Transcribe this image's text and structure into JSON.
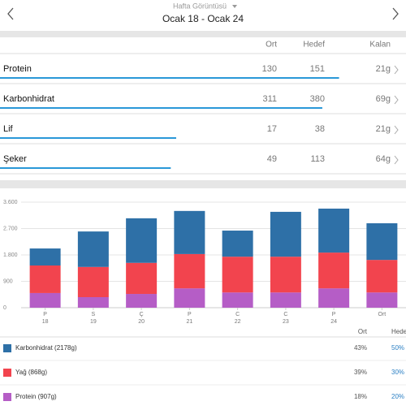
{
  "header": {
    "subtitle": "Hafta Görüntüsü",
    "title": "Ocak 18 - Ocak 24"
  },
  "columns": [
    "Ort",
    "Hedef",
    "Kalan"
  ],
  "nutrients": [
    {
      "name": "Protein",
      "ort": 130,
      "hedef": 151,
      "kalan": "21g"
    },
    {
      "name": "Karbonhidrat",
      "ort": 311,
      "hedef": 380,
      "kalan": "69g"
    },
    {
      "name": "Lif",
      "ort": 17,
      "hedef": 38,
      "kalan": "21g"
    },
    {
      "name": "Şeker",
      "ort": 49,
      "hedef": 113,
      "kalan": "64g"
    }
  ],
  "chart_data": {
    "type": "stacked_bar",
    "categories": [
      "P",
      "S",
      "Ç",
      "P",
      "C",
      "C",
      "P",
      "Ort"
    ],
    "days": [
      18,
      19,
      20,
      21,
      22,
      23,
      24,
      null
    ],
    "ylim": [
      0,
      3600
    ],
    "yticks": [
      0,
      900,
      {
        "value": 1800,
        "label": "1.800"
      },
      {
        "value": 2700,
        "label": "2.700"
      },
      {
        "value": 3600,
        "label": "3.600"
      }
    ],
    "grid": true,
    "series": [
      {
        "name": "Protein (907g)",
        "color": "#b55dc6",
        "values": [
          500,
          360,
          470,
          660,
          520,
          520,
          660,
          520
        ]
      },
      {
        "name": "Yağ (868g)",
        "color": "#f2444e",
        "values": [
          940,
          1030,
          1060,
          1170,
          1220,
          1220,
          1220,
          1110
        ]
      },
      {
        "name": "Karbonhidrat (2178g)",
        "color": "#2e70a7",
        "values": [
          580,
          1210,
          1520,
          1470,
          890,
          1530,
          1500,
          1250
        ]
      }
    ]
  },
  "macro_split": {
    "columns": [
      "Ort",
      "Hedef"
    ],
    "rows": [
      [
        "18%",
        "20%"
      ],
      [
        "39%",
        "30%"
      ],
      [
        "43%",
        "50%"
      ]
    ]
  }
}
